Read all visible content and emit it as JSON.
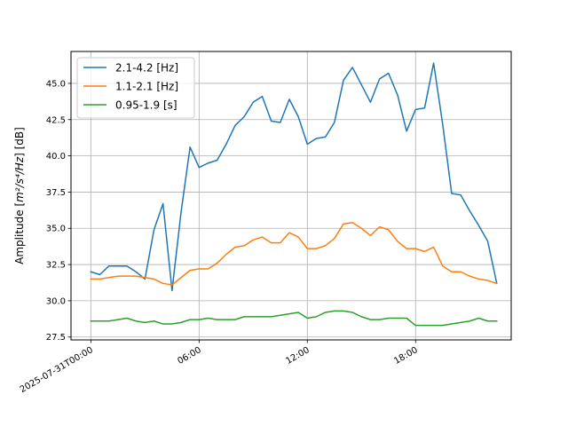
{
  "chart_data": {
    "type": "line",
    "title": "",
    "xlabel": "",
    "ylabel_main": "Amplitude [",
    "ylabel_math": "m²/s⁴/Hz",
    "ylabel_tail": "] [dB]",
    "ylim": [
      27.3,
      47.2
    ],
    "xlim_hours": [
      -1.1,
      23.3
    ],
    "grid": true,
    "legend_position": "top-left",
    "x_ticks": [
      {
        "hour": 0,
        "label": "2025-07-31T00:00"
      },
      {
        "hour": 6,
        "label": "06:00"
      },
      {
        "hour": 12,
        "label": "12:00"
      },
      {
        "hour": 18,
        "label": "18:00"
      }
    ],
    "y_ticks": [
      {
        "value": 27.5,
        "label": "27.5"
      },
      {
        "value": 30.0,
        "label": "30.0"
      },
      {
        "value": 32.5,
        "label": "32.5"
      },
      {
        "value": 35.0,
        "label": "35.0"
      },
      {
        "value": 37.5,
        "label": "37.5"
      },
      {
        "value": 40.0,
        "label": "40.0"
      },
      {
        "value": 42.5,
        "label": "42.5"
      },
      {
        "value": 45.0,
        "label": "45.0"
      }
    ],
    "x_hours": [
      0,
      0.5,
      1,
      1.5,
      2,
      2.5,
      3,
      3.5,
      4,
      4.5,
      5,
      5.5,
      6,
      6.5,
      7,
      7.5,
      8,
      8.5,
      9,
      9.5,
      10,
      10.5,
      11,
      11.5,
      12,
      12.5,
      13,
      13.5,
      14,
      14.5,
      15,
      15.5,
      16,
      16.5,
      17,
      17.5,
      18,
      18.5,
      19,
      19.5,
      20,
      20.5,
      21,
      21.5,
      22,
      22.5
    ],
    "series": [
      {
        "name": "2.1-4.2 [Hz]",
        "color": "#1f77b4",
        "values": [
          32.0,
          31.8,
          32.4,
          32.4,
          32.4,
          32.0,
          31.5,
          34.9,
          36.7,
          30.7,
          36.1,
          40.6,
          39.2,
          39.5,
          39.7,
          40.8,
          42.1,
          42.7,
          43.7,
          44.1,
          42.4,
          42.3,
          43.9,
          42.7,
          40.8,
          41.2,
          41.3,
          42.3,
          45.2,
          46.1,
          44.9,
          43.7,
          45.3,
          45.7,
          44.2,
          41.7,
          43.2,
          43.3,
          46.4,
          42.2,
          37.4,
          37.3,
          36.2,
          35.2,
          34.1,
          31.2
        ]
      },
      {
        "name": "1.1-2.1 [Hz]",
        "color": "#ff7f0e",
        "values": [
          31.5,
          31.5,
          31.6,
          31.7,
          31.7,
          31.7,
          31.6,
          31.5,
          31.2,
          31.1,
          31.6,
          32.1,
          32.2,
          32.2,
          32.6,
          33.2,
          33.7,
          33.8,
          34.2,
          34.4,
          34.0,
          34.0,
          34.7,
          34.4,
          33.6,
          33.6,
          33.8,
          34.3,
          35.3,
          35.4,
          35.0,
          34.5,
          35.1,
          34.9,
          34.1,
          33.6,
          33.6,
          33.4,
          33.7,
          32.4,
          32.0,
          32.0,
          31.7,
          31.5,
          31.4,
          31.2
        ]
      },
      {
        "name": "0.95-1.9 [s]",
        "color": "#2ca02c",
        "values": [
          28.6,
          28.6,
          28.6,
          28.7,
          28.8,
          28.6,
          28.5,
          28.6,
          28.4,
          28.4,
          28.5,
          28.7,
          28.7,
          28.8,
          28.7,
          28.7,
          28.7,
          28.9,
          28.9,
          28.9,
          28.9,
          29.0,
          29.1,
          29.2,
          28.8,
          28.9,
          29.2,
          29.3,
          29.3,
          29.2,
          28.9,
          28.7,
          28.7,
          28.8,
          28.8,
          28.8,
          28.3,
          28.3,
          28.3,
          28.3,
          28.4,
          28.5,
          28.6,
          28.8,
          28.6,
          28.6
        ]
      }
    ]
  }
}
